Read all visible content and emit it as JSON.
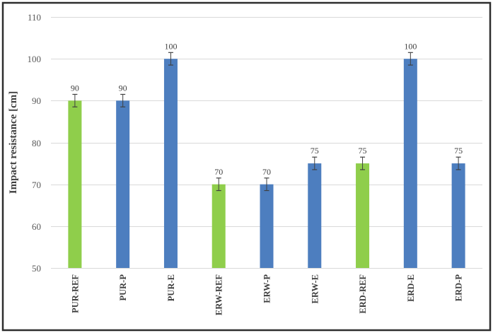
{
  "chart_data": {
    "type": "bar",
    "title": "",
    "xlabel": "",
    "ylabel": "Impact resistance [cm]",
    "categories": [
      "PUR-REF",
      "PUR-P",
      "PUR-E",
      "ERW-REF",
      "ERW-P",
      "ERW-E",
      "ERD-REF",
      "ERD-E",
      "ERD-P"
    ],
    "values": [
      90,
      90,
      100,
      70,
      70,
      75,
      75,
      100,
      75
    ],
    "data_labels": [
      "90",
      "90",
      "100",
      "70",
      "70",
      "75",
      "75",
      "100",
      "75"
    ],
    "bar_color_keys": [
      "green",
      "blue",
      "blue",
      "green",
      "blue",
      "blue",
      "green",
      "blue",
      "blue"
    ],
    "palette": {
      "green": "#8FCE4B",
      "blue": "#4D7EBF"
    },
    "error_bar_value": 1.5,
    "yticks": [
      50,
      60,
      70,
      80,
      90,
      100,
      110
    ],
    "ylim": [
      50,
      110
    ],
    "grid": true,
    "gridline_color": "#D9D9D9",
    "tick_label_color": "#595959",
    "data_label_color": "#404040",
    "category_label_color": "#3F3F3F",
    "axis_title_color": "#3F3F3F",
    "error_bar_color": "#404040",
    "frame_color": "#2E2E2E",
    "background_color": "#FFFFFF",
    "legend": null
  }
}
